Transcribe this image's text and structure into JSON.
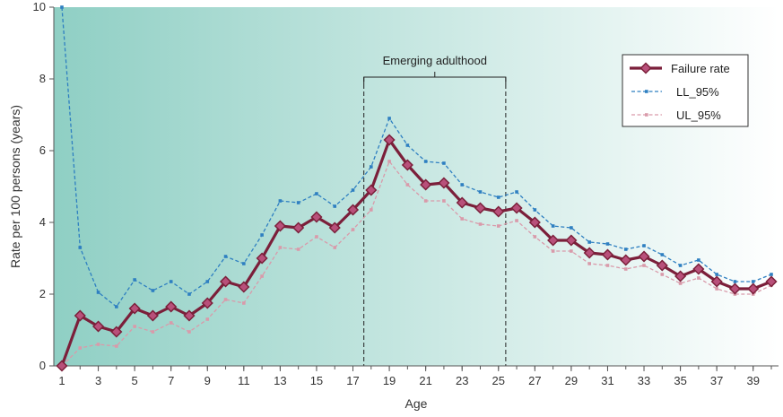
{
  "chart_data": {
    "type": "line",
    "title": "",
    "xlabel": "Age",
    "ylabel": "Rate per 100 persons (years)",
    "xlim": [
      1,
      40
    ],
    "ylim": [
      0,
      10
    ],
    "x_ticks": [
      1,
      3,
      5,
      7,
      9,
      11,
      13,
      15,
      17,
      19,
      21,
      23,
      25,
      27,
      29,
      31,
      33,
      35,
      37,
      39
    ],
    "y_ticks": [
      0,
      2,
      4,
      6,
      8,
      10
    ],
    "x": [
      1,
      2,
      3,
      4,
      5,
      6,
      7,
      8,
      9,
      10,
      11,
      12,
      13,
      14,
      15,
      16,
      17,
      18,
      19,
      20,
      21,
      22,
      23,
      24,
      25,
      26,
      27,
      28,
      29,
      30,
      31,
      32,
      33,
      34,
      35,
      36,
      37,
      38,
      39,
      40
    ],
    "series": [
      {
        "name": "Failure rate",
        "color": "#7b1f3a",
        "style": "solid-diamond",
        "values": [
          0.0,
          1.4,
          1.1,
          0.95,
          1.6,
          1.4,
          1.65,
          1.4,
          1.75,
          2.35,
          2.2,
          3.0,
          3.9,
          3.85,
          4.15,
          3.85,
          4.35,
          4.9,
          6.3,
          5.6,
          5.05,
          5.1,
          4.55,
          4.4,
          4.3,
          4.4,
          4.0,
          3.5,
          3.5,
          3.15,
          3.1,
          2.95,
          3.05,
          2.8,
          2.5,
          2.7,
          2.35,
          2.15,
          2.15,
          2.35
        ]
      },
      {
        "name": "LL_95%",
        "color": "#2e7fc1",
        "style": "dashed",
        "values": [
          10.0,
          3.3,
          2.05,
          1.65,
          2.4,
          2.1,
          2.35,
          2.0,
          2.35,
          3.05,
          2.85,
          3.65,
          4.6,
          4.55,
          4.8,
          4.45,
          4.9,
          5.55,
          6.9,
          6.15,
          5.7,
          5.65,
          5.05,
          4.85,
          4.7,
          4.85,
          4.35,
          3.9,
          3.85,
          3.45,
          3.4,
          3.25,
          3.35,
          3.1,
          2.8,
          2.95,
          2.55,
          2.35,
          2.35,
          2.55
        ]
      },
      {
        "name": "UL_95%",
        "color": "#d99aaa",
        "style": "dashed",
        "values": [
          0.0,
          0.5,
          0.6,
          0.55,
          1.1,
          0.95,
          1.2,
          0.95,
          1.3,
          1.85,
          1.75,
          2.5,
          3.3,
          3.25,
          3.6,
          3.3,
          3.8,
          4.35,
          5.7,
          5.05,
          4.6,
          4.6,
          4.1,
          3.95,
          3.9,
          4.05,
          3.6,
          3.2,
          3.2,
          2.85,
          2.8,
          2.7,
          2.8,
          2.55,
          2.3,
          2.45,
          2.15,
          2.0,
          2.0,
          2.25
        ]
      }
    ],
    "annotation": {
      "label": "Emerging adulthood",
      "x_start": 17.6,
      "x_end": 25.4
    },
    "legend_placement": "top-right",
    "grid": false,
    "background_gradient": [
      "#8fcfc4",
      "#ffffff"
    ]
  }
}
